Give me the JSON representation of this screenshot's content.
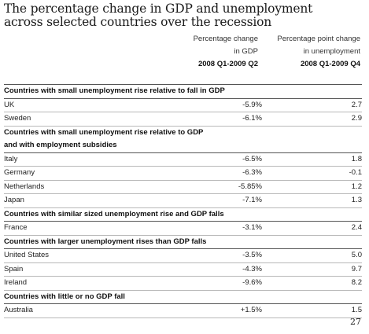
{
  "title_line1": "The percentage change in GDP and unemployment",
  "title_line2": "across selected countries over the recession",
  "columns": {
    "gdp": {
      "line1": "Percentage change",
      "line2": "in GDP",
      "period": "2008 Q1-2009 Q2"
    },
    "unemp": {
      "line1": "Percentage point change",
      "line2": "in unemployment",
      "period": "2008 Q1-2009 Q4"
    }
  },
  "sections": [
    {
      "heading": [
        "Countries with small unemployment rise relative to fall in GDP"
      ],
      "rows": [
        {
          "country": "UK",
          "gdp": "-5.9%",
          "unemp": "2.7"
        },
        {
          "country": "Sweden",
          "gdp": "-6.1%",
          "unemp": "2.9"
        }
      ]
    },
    {
      "heading": [
        "Countries with small unemployment rise relative to GDP",
        "and with employment subsidies"
      ],
      "rows": [
        {
          "country": "Italy",
          "gdp": "-6.5%",
          "unemp": "1.8"
        },
        {
          "country": "Germany",
          "gdp": "-6.3%",
          "unemp": "-0.1"
        },
        {
          "country": "Netherlands",
          "gdp": "-5.85%",
          "unemp": "1.2"
        },
        {
          "country": "Japan",
          "gdp": "-7.1%",
          "unemp": "1.3"
        }
      ]
    },
    {
      "heading": [
        "Countries with similar sized unemployment rise and GDP falls"
      ],
      "rows": [
        {
          "country": "France",
          "gdp": "-3.1%",
          "unemp": "2.4"
        }
      ]
    },
    {
      "heading": [
        "Countries with larger unemployment rises than GDP falls"
      ],
      "rows": [
        {
          "country": "United States",
          "gdp": "-3.5%",
          "unemp": "5.0"
        },
        {
          "country": "Spain",
          "gdp": "-4.3%",
          "unemp": "9.7"
        },
        {
          "country": "Ireland",
          "gdp": "-9.6%",
          "unemp": "8.2"
        }
      ]
    },
    {
      "heading": [
        "Countries with little or no GDP fall"
      ],
      "rows": [
        {
          "country": "Australia",
          "gdp": "+1.5%",
          "unemp": "1.5"
        }
      ]
    }
  ],
  "page_number": "27"
}
